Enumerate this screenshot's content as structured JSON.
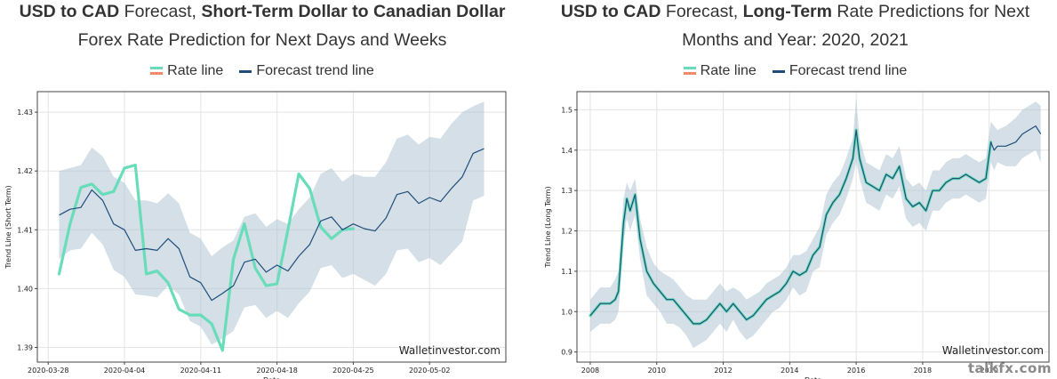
{
  "site_mark": "talkfx.com",
  "charts": {
    "short": {
      "title_line1_bold1": "USD to CAD",
      "title_line1_normal": " Forecast, ",
      "title_line1_bold2": "Short-Term Dollar to Canadian Dollar",
      "title_line2": "Forex Rate Prediction for Next Days and Weeks",
      "legend_rate": "Rate line",
      "legend_trend": "Forecast trend line",
      "watermark": "Walletinvestor.com"
    },
    "long": {
      "title_line1_bold1": "USD to CAD",
      "title_line1_normal1": " Forecast, ",
      "title_line1_bold2": "Long-Term",
      "title_line1_normal2": " Rate Predictions for Next",
      "title_line2": "Months and Year: 2020, 2021",
      "legend_rate": "Rate line",
      "legend_trend": "Forecast trend line",
      "watermark": "Walletinvestor.com"
    }
  },
  "chart_data": [
    {
      "type": "line",
      "title": "USD to CAD Forecast, Short-Term Dollar to Canadian Dollar Forex Rate Prediction for Next Days and Weeks",
      "xlabel": "Date",
      "ylabel": "Trend Line (Short Term)",
      "xlim": [
        -1,
        42
      ],
      "ylim": [
        1.3875,
        1.4335
      ],
      "yticks": [
        1.39,
        1.4,
        1.41,
        1.42,
        1.43
      ],
      "ytick_labels": [
        "1.39",
        "1.40",
        "1.41",
        "1.42",
        "1.43"
      ],
      "xticks": [
        0,
        7,
        14,
        21,
        28,
        35
      ],
      "xtick_labels": [
        "2020-03-28",
        "2020-04-04",
        "2020-04-11",
        "2020-04-18",
        "2020-04-25",
        "2020-05-02"
      ],
      "x": [
        1,
        2,
        3,
        4,
        5,
        6,
        7,
        8,
        9,
        10,
        11,
        12,
        13,
        14,
        15,
        16,
        17,
        18,
        19,
        20,
        21,
        22,
        23,
        24,
        25,
        26,
        27,
        28,
        29,
        30,
        31,
        32,
        33,
        34,
        35,
        36,
        37,
        38,
        39,
        40
      ],
      "series": [
        {
          "name": "Rate line",
          "values": [
            1.4025,
            1.411,
            1.4172,
            1.4178,
            1.416,
            1.4165,
            1.4205,
            1.421,
            1.4025,
            1.403,
            1.401,
            1.3965,
            1.3955,
            1.3955,
            1.394,
            1.3895,
            1.405,
            1.411,
            1.4035,
            1.4005,
            1.4008,
            1.41,
            1.4195,
            1.417,
            1.4105,
            1.4085,
            1.41,
            1.4102,
            null,
            null,
            null,
            null,
            null,
            null,
            null,
            null,
            null,
            null,
            null,
            null
          ]
        },
        {
          "name": "Forecast trend line",
          "values": [
            1.4125,
            1.4135,
            1.4138,
            1.4168,
            1.415,
            1.411,
            1.41,
            1.4065,
            1.4068,
            1.4065,
            1.4085,
            1.4068,
            1.402,
            1.401,
            1.398,
            1.3992,
            1.4005,
            1.4045,
            1.405,
            1.4028,
            1.404,
            1.403,
            1.4055,
            1.4075,
            1.4115,
            1.4122,
            1.41,
            1.411,
            1.4102,
            1.4098,
            1.412,
            1.416,
            1.4165,
            1.4145,
            1.4155,
            1.4148,
            1.417,
            1.419,
            1.423,
            1.4238
          ]
        },
        {
          "name": "Confidence upper",
          "values": [
            1.42,
            1.4205,
            1.421,
            1.424,
            1.4225,
            1.419,
            1.418,
            1.415,
            1.415,
            1.4145,
            1.4162,
            1.4145,
            1.4095,
            1.4085,
            1.4055,
            1.407,
            1.4082,
            1.4122,
            1.4128,
            1.4105,
            1.4118,
            1.411,
            1.4135,
            1.4155,
            1.4195,
            1.4205,
            1.4182,
            1.4195,
            1.419,
            1.419,
            1.4215,
            1.4255,
            1.4262,
            1.4245,
            1.4258,
            1.4255,
            1.428,
            1.43,
            1.431,
            1.4318
          ]
        },
        {
          "name": "Confidence lower",
          "values": [
            1.405,
            1.4065,
            1.4068,
            1.4095,
            1.4075,
            1.4032,
            1.402,
            1.399,
            1.3988,
            1.3985,
            1.4005,
            1.399,
            1.3945,
            1.3935,
            1.3905,
            1.3915,
            1.3928,
            1.3968,
            1.3972,
            1.395,
            1.3962,
            1.395,
            1.3975,
            1.3995,
            1.4035,
            1.404,
            1.4018,
            1.4025,
            1.4015,
            1.4005,
            1.4025,
            1.4065,
            1.4068,
            1.4045,
            1.4052,
            1.404,
            1.406,
            1.408,
            1.415,
            1.4158
          ]
        }
      ]
    },
    {
      "type": "line",
      "title": "USD to CAD Forecast, Long-Term Rate Predictions for Next Months and Year: 2020, 2021",
      "xlabel": "Date",
      "ylabel": "Trend Line (Long Term)",
      "xlim": [
        2007.6,
        2021.8
      ],
      "ylim": [
        0.875,
        1.545
      ],
      "yticks": [
        0.9,
        1.0,
        1.1,
        1.2,
        1.3,
        1.4,
        1.5
      ],
      "ytick_labels": [
        "0.9",
        "1.0",
        "1.1",
        "1.2",
        "1.3",
        "1.4",
        "1.5"
      ],
      "xticks": [
        2008,
        2010,
        2012,
        2014,
        2016,
        2018,
        2020
      ],
      "xtick_labels": [
        "2008",
        "2010",
        "2012",
        "2014",
        "2016",
        "2018",
        "2020"
      ],
      "x": [
        2008.0,
        2008.3,
        2008.6,
        2008.75,
        2008.85,
        2009.0,
        2009.1,
        2009.2,
        2009.35,
        2009.5,
        2009.7,
        2009.9,
        2010.1,
        2010.3,
        2010.5,
        2010.7,
        2010.9,
        2011.1,
        2011.3,
        2011.5,
        2011.7,
        2011.9,
        2012.1,
        2012.3,
        2012.5,
        2012.7,
        2012.9,
        2013.1,
        2013.3,
        2013.5,
        2013.7,
        2013.9,
        2014.1,
        2014.3,
        2014.5,
        2014.7,
        2014.9,
        2015.1,
        2015.3,
        2015.5,
        2015.7,
        2015.9,
        2016.0,
        2016.1,
        2016.3,
        2016.5,
        2016.7,
        2016.9,
        2017.1,
        2017.3,
        2017.5,
        2017.7,
        2017.9,
        2018.1,
        2018.3,
        2018.5,
        2018.7,
        2018.9,
        2019.1,
        2019.3,
        2019.5,
        2019.7,
        2019.9,
        2020.05,
        2020.15,
        2020.25,
        2020.5,
        2020.8,
        2021.0,
        2021.2,
        2021.4,
        2021.55
      ],
      "series": [
        {
          "name": "Rate line",
          "values": [
            0.99,
            1.02,
            1.02,
            1.03,
            1.05,
            1.22,
            1.28,
            1.25,
            1.29,
            1.18,
            1.1,
            1.07,
            1.05,
            1.03,
            1.03,
            1.01,
            0.99,
            0.97,
            0.97,
            0.98,
            1.0,
            1.02,
            1.0,
            1.02,
            1.0,
            0.98,
            0.99,
            1.01,
            1.03,
            1.04,
            1.05,
            1.07,
            1.1,
            1.09,
            1.1,
            1.14,
            1.16,
            1.24,
            1.27,
            1.29,
            1.33,
            1.38,
            1.45,
            1.38,
            1.32,
            1.31,
            1.3,
            1.34,
            1.33,
            1.36,
            1.28,
            1.26,
            1.27,
            1.25,
            1.3,
            1.3,
            1.32,
            1.33,
            1.33,
            1.34,
            1.33,
            1.32,
            1.33,
            1.42,
            null,
            null,
            null,
            null,
            null,
            null,
            null,
            null
          ]
        },
        {
          "name": "Forecast trend line",
          "values": [
            0.99,
            1.02,
            1.02,
            1.03,
            1.05,
            1.22,
            1.28,
            1.25,
            1.29,
            1.18,
            1.1,
            1.07,
            1.05,
            1.03,
            1.03,
            1.01,
            0.99,
            0.97,
            0.97,
            0.98,
            1.0,
            1.02,
            1.0,
            1.02,
            1.0,
            0.98,
            0.99,
            1.01,
            1.03,
            1.04,
            1.05,
            1.07,
            1.1,
            1.09,
            1.1,
            1.14,
            1.16,
            1.24,
            1.27,
            1.29,
            1.33,
            1.38,
            1.45,
            1.38,
            1.32,
            1.31,
            1.3,
            1.34,
            1.33,
            1.36,
            1.28,
            1.26,
            1.27,
            1.25,
            1.3,
            1.3,
            1.32,
            1.33,
            1.33,
            1.34,
            1.33,
            1.32,
            1.33,
            1.42,
            1.4,
            1.41,
            1.41,
            1.42,
            1.44,
            1.45,
            1.46,
            1.44
          ]
        },
        {
          "name": "Confidence upper",
          "values": [
            1.03,
            1.06,
            1.06,
            1.08,
            1.1,
            1.28,
            1.32,
            1.3,
            1.33,
            1.23,
            1.16,
            1.12,
            1.1,
            1.09,
            1.08,
            1.06,
            1.04,
            1.03,
            1.03,
            1.03,
            1.05,
            1.07,
            1.05,
            1.06,
            1.05,
            1.03,
            1.04,
            1.05,
            1.07,
            1.08,
            1.09,
            1.11,
            1.14,
            1.14,
            1.15,
            1.18,
            1.21,
            1.29,
            1.32,
            1.34,
            1.38,
            1.43,
            1.53,
            1.43,
            1.37,
            1.36,
            1.35,
            1.39,
            1.38,
            1.41,
            1.33,
            1.31,
            1.32,
            1.3,
            1.35,
            1.35,
            1.37,
            1.38,
            1.38,
            1.39,
            1.38,
            1.37,
            1.38,
            1.47,
            1.46,
            1.45,
            1.46,
            1.48,
            1.5,
            1.51,
            1.52,
            1.51
          ]
        },
        {
          "name": "Confidence lower",
          "values": [
            0.95,
            0.97,
            0.97,
            0.98,
            1.0,
            1.17,
            1.23,
            1.2,
            1.24,
            1.13,
            1.04,
            1.02,
            1.0,
            0.97,
            0.97,
            0.96,
            0.94,
            0.91,
            0.92,
            0.93,
            0.95,
            0.97,
            0.95,
            0.98,
            0.95,
            0.93,
            0.94,
            0.96,
            0.98,
            1.0,
            1.01,
            1.03,
            1.06,
            1.04,
            1.05,
            1.1,
            1.11,
            1.19,
            1.22,
            1.24,
            1.28,
            1.33,
            1.37,
            1.33,
            1.27,
            1.26,
            1.25,
            1.29,
            1.28,
            1.31,
            1.23,
            1.21,
            1.22,
            1.2,
            1.25,
            1.25,
            1.27,
            1.28,
            1.28,
            1.29,
            1.28,
            1.27,
            1.28,
            1.37,
            1.35,
            1.37,
            1.36,
            1.36,
            1.38,
            1.39,
            1.4,
            1.37
          ]
        }
      ]
    }
  ]
}
